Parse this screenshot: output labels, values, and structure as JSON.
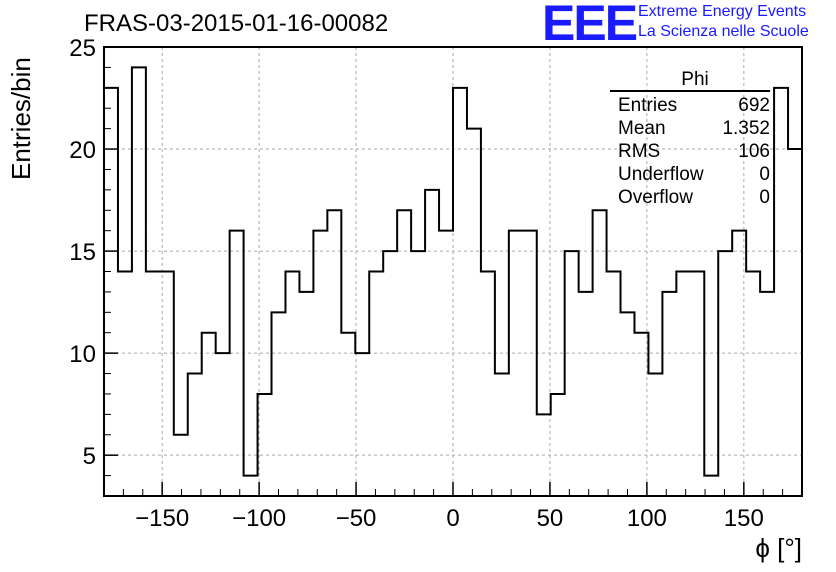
{
  "header": {
    "run_title": "FRAS-03-2015-01-16-00082",
    "logo": "EEE",
    "logo_line1": "Extreme Energy Events",
    "logo_line2": "La Scienza nelle Scuole",
    "logo_color": "#1a1aff"
  },
  "stats_box": {
    "title": "Phi",
    "rows": [
      {
        "label": "Entries",
        "value": "692"
      },
      {
        "label": "Mean",
        "value": "1.352"
      },
      {
        "label": "RMS",
        "value": "106"
      },
      {
        "label": "Underflow",
        "value": "0"
      },
      {
        "label": "Overflow",
        "value": "0"
      }
    ]
  },
  "chart_data": {
    "type": "bar",
    "style": "step-histogram",
    "title": "",
    "xlabel": "ϕ [°]",
    "ylabel": "Entries/bin",
    "xlim": [
      -180,
      180
    ],
    "ylim": [
      3,
      25
    ],
    "bin_width": 7.2,
    "x_ticks": [
      -150,
      -100,
      -50,
      0,
      50,
      100,
      150
    ],
    "x_tick_labels": [
      "−150",
      "−100",
      "−50",
      "0",
      "50",
      "100",
      "150"
    ],
    "y_ticks": [
      5,
      10,
      15,
      20,
      25
    ],
    "y_tick_labels": [
      "5",
      "10",
      "15",
      "20",
      "25"
    ],
    "grid": true,
    "values": [
      23,
      14,
      24,
      14,
      14,
      6,
      9,
      11,
      10,
      16,
      4,
      8,
      12,
      14,
      13,
      16,
      17,
      11,
      10,
      14,
      15,
      17,
      15,
      18,
      16,
      23,
      21,
      14,
      9,
      16,
      16,
      7,
      8,
      15,
      13,
      17,
      14,
      12,
      11,
      9,
      13,
      14,
      14,
      4,
      15,
      16,
      14,
      13,
      23,
      20
    ],
    "line_color": "#000000"
  }
}
